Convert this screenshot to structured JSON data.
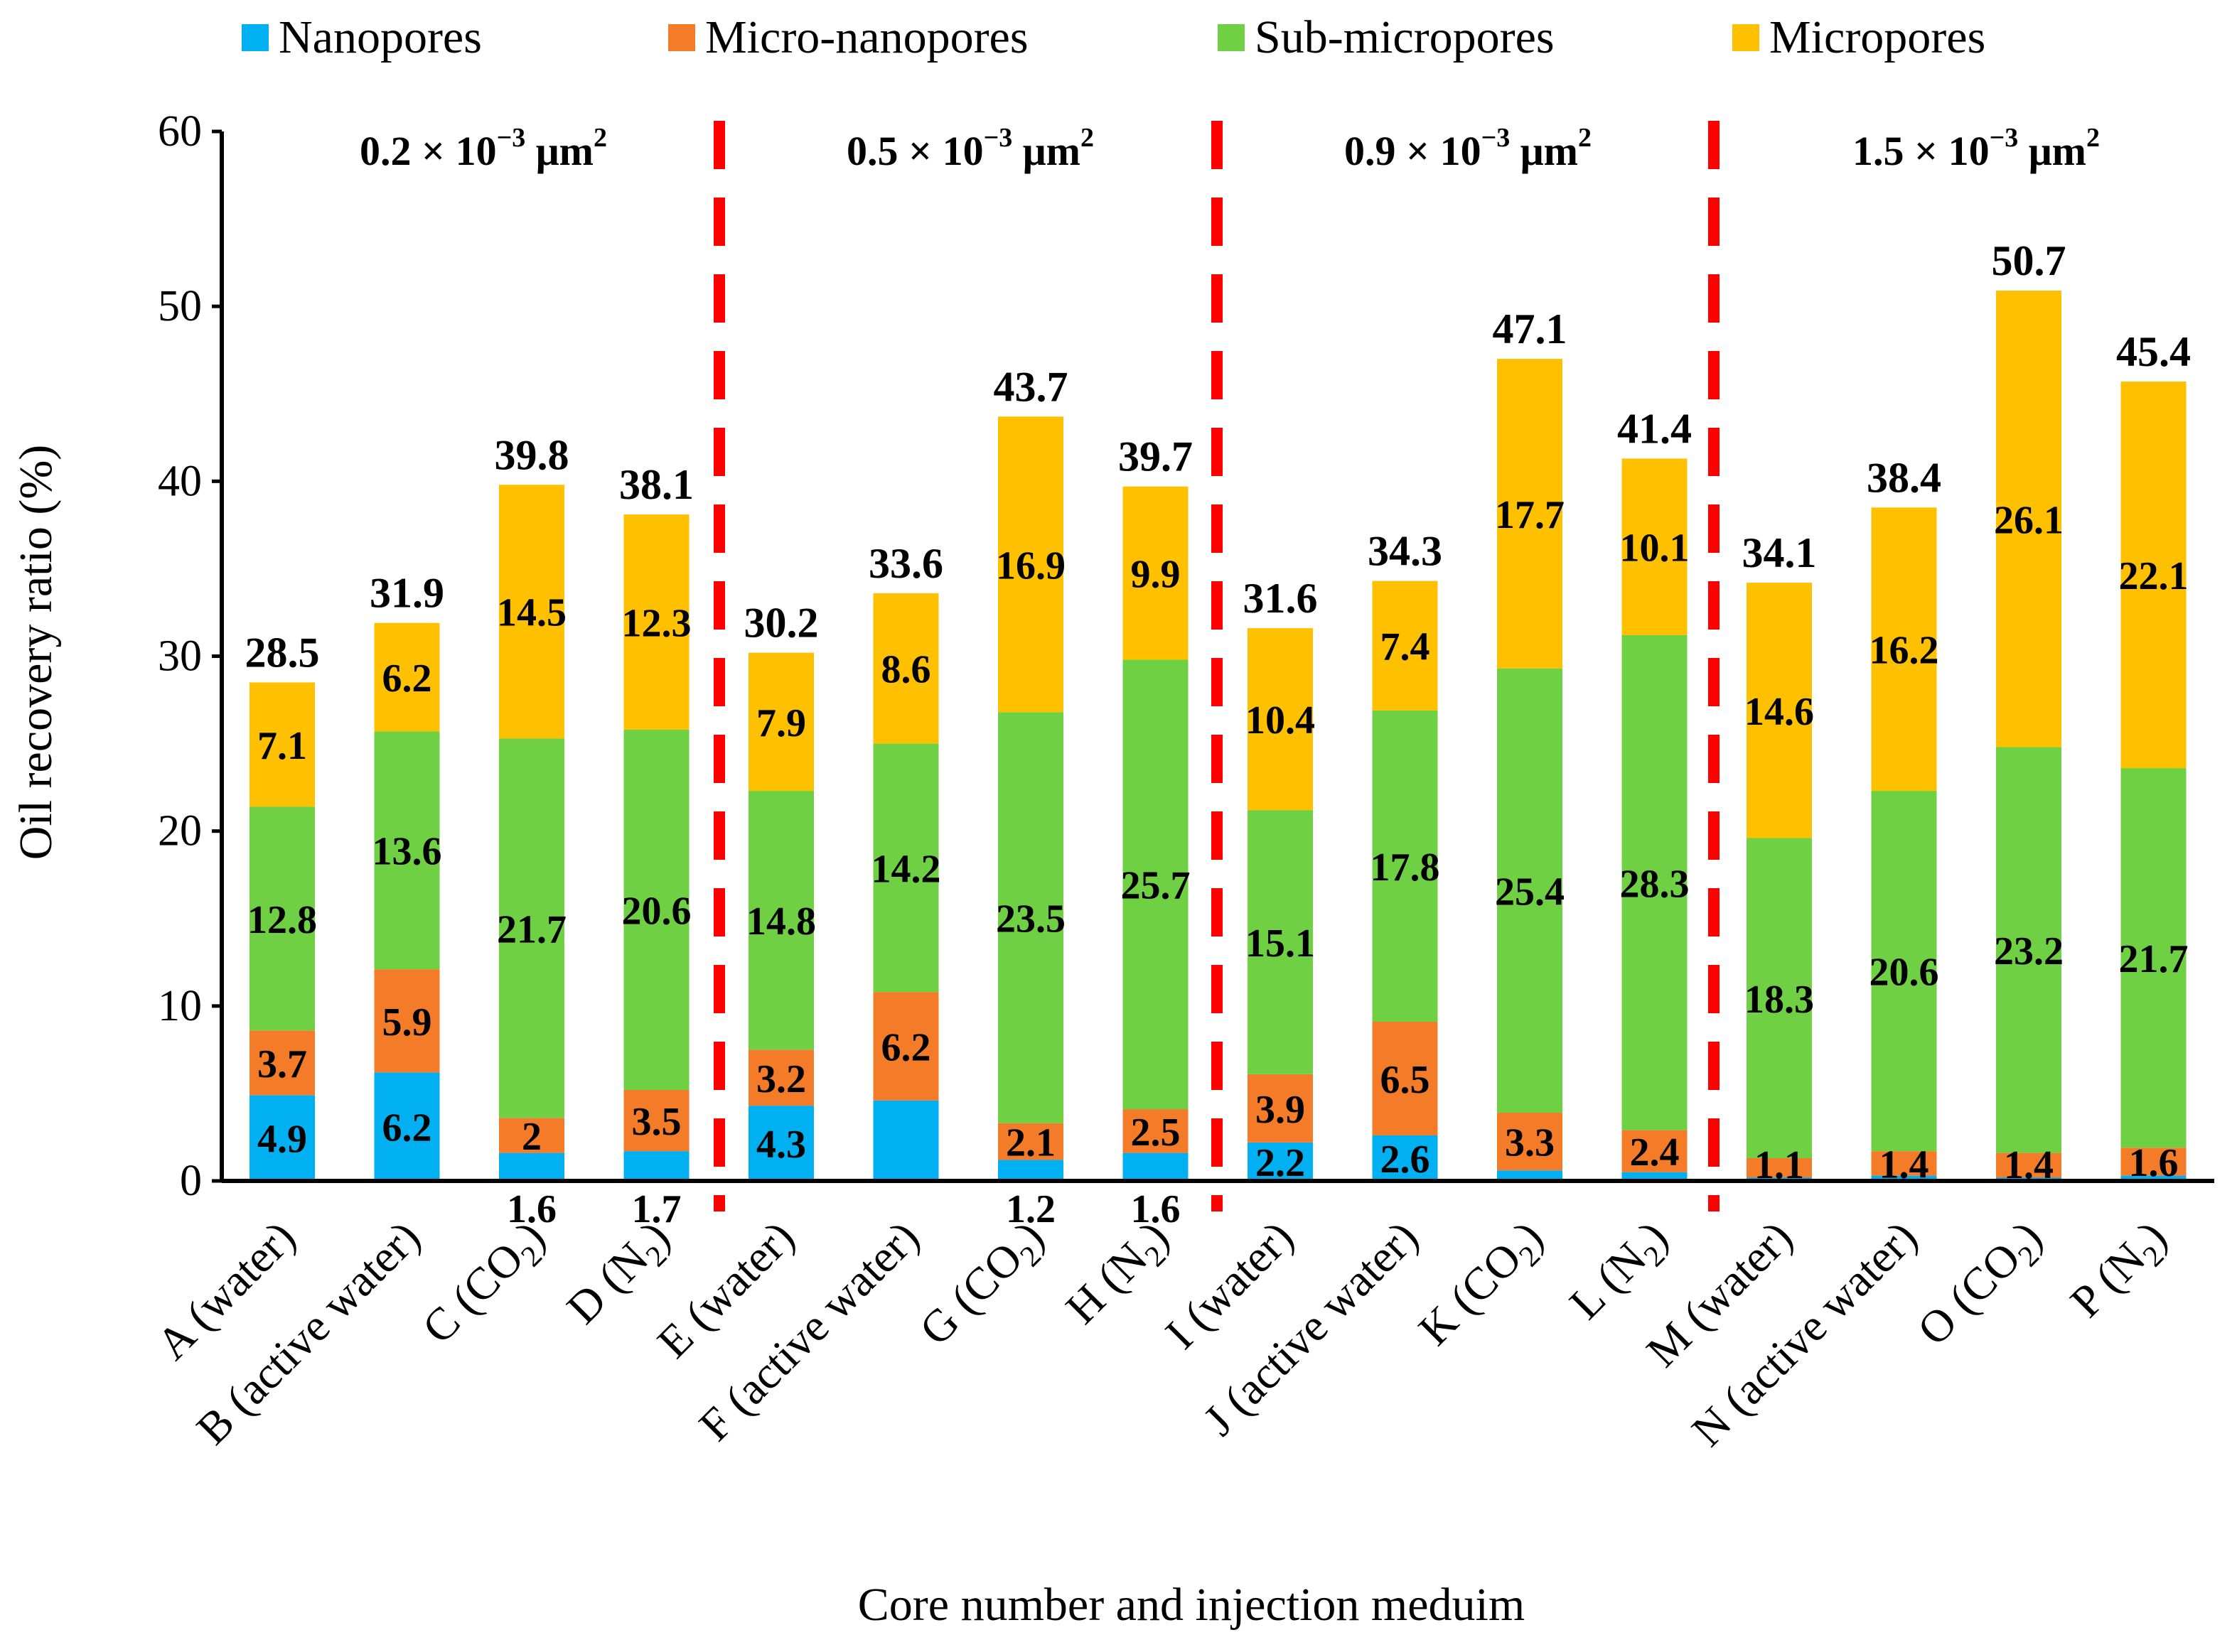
{
  "chart_data": {
    "type": "bar",
    "stacked": true,
    "xlabel": "Core number and injection meduim",
    "ylabel": "Oil recovery ratio (%)",
    "ylim": [
      0,
      60
    ],
    "yticks": [
      0,
      10,
      20,
      30,
      40,
      50,
      60
    ],
    "legend_position": "top",
    "categories": [
      {
        "main": "A (water)"
      },
      {
        "main": "B (active water)"
      },
      {
        "main": "C (CO",
        "sub": "2",
        "end": ")"
      },
      {
        "main": "D (N",
        "sub": "2",
        "end": ")"
      },
      {
        "main": "E (water)"
      },
      {
        "main": "F (active water)"
      },
      {
        "main": "G (CO",
        "sub": "2",
        "end": ")"
      },
      {
        "main": "H (N",
        "sub": "2",
        "end": ")"
      },
      {
        "main": "I (water)"
      },
      {
        "main": "J (active water)"
      },
      {
        "main": "K (CO",
        "sub": "2",
        "end": ")"
      },
      {
        "main": "L (N",
        "sub": "2",
        "end": ")"
      },
      {
        "main": "M (water)"
      },
      {
        "main": "N (active water)"
      },
      {
        "main": "O (CO",
        "sub": "2",
        "end": ")"
      },
      {
        "main": "P (N",
        "sub": "2",
        "end": ")"
      }
    ],
    "series": [
      {
        "name": "Nanopores",
        "color": "#00b0f0",
        "values": [
          4.9,
          6.2,
          1.6,
          1.7,
          4.3,
          4.6,
          1.2,
          1.6,
          2.2,
          2.6,
          0.6,
          0.5,
          0.2,
          0.3,
          0.2,
          0.3
        ],
        "labels": [
          "4.9",
          "6.2",
          "1.6",
          "1.7",
          "4.3",
          "",
          "1.2",
          "1.6",
          "2.2",
          "2.6",
          "",
          "",
          "",
          "",
          "",
          ""
        ]
      },
      {
        "name": "Micro-nanopores",
        "color": "#f47c28",
        "values": [
          3.7,
          5.9,
          2.0,
          3.5,
          3.2,
          6.2,
          2.1,
          2.5,
          3.9,
          6.5,
          3.3,
          2.4,
          1.1,
          1.4,
          1.4,
          1.6
        ],
        "labels": [
          "3.7",
          "5.9",
          "2",
          "3.5",
          "3.2",
          "6.2",
          "2.1",
          "2.5",
          "3.9",
          "6.5",
          "3.3",
          "2.4",
          "1.1",
          "1.4",
          "1.4",
          "1.6"
        ]
      },
      {
        "name": "Sub-micropores",
        "color": "#6fd043",
        "values": [
          12.8,
          13.6,
          21.7,
          20.6,
          14.8,
          14.2,
          23.5,
          25.7,
          15.1,
          17.8,
          25.4,
          28.3,
          18.3,
          20.6,
          23.2,
          21.7
        ],
        "labels": [
          "12.8",
          "13.6",
          "21.7",
          "20.6",
          "14.8",
          "14.2",
          "23.5",
          "25.7",
          "15.1",
          "17.8",
          "25.4",
          "28.3",
          "18.3",
          "20.6",
          "23.2",
          "21.7"
        ]
      },
      {
        "name": "Micropores",
        "color": "#ffc000",
        "values": [
          7.1,
          6.2,
          14.5,
          12.3,
          7.9,
          8.6,
          16.9,
          9.9,
          10.4,
          7.4,
          17.7,
          10.1,
          14.6,
          16.2,
          26.1,
          22.1
        ],
        "labels": [
          "7.1",
          "6.2",
          "14.5",
          "12.3",
          "7.9",
          "8.6",
          "16.9",
          "9.9",
          "10.4",
          "7.4",
          "17.7",
          "10.1",
          "14.6",
          "16.2",
          "26.1",
          "22.1"
        ]
      }
    ],
    "totals": [
      "28.5",
      "31.9",
      "39.8",
      "38.1",
      "30.2",
      "33.6",
      "43.7",
      "39.7",
      "31.6",
      "34.3",
      "47.1",
      "41.4",
      "34.1",
      "38.4",
      "50.7",
      "45.4"
    ],
    "group_labels": [
      {
        "prefix": "0.2 × 10",
        "exp": "−3",
        "unit": " μm",
        "unit_exp": "2"
      },
      {
        "prefix": "0.5 × 10",
        "exp": "−3",
        "unit": " μm",
        "unit_exp": "2"
      },
      {
        "prefix": "0.9 × 10",
        "exp": "−3",
        "unit": " μm",
        "unit_exp": "2"
      },
      {
        "prefix": "1.5 × 10",
        "exp": "−3",
        "unit": " μm",
        "unit_exp": "2"
      }
    ],
    "divider_color": "#ff0000"
  }
}
